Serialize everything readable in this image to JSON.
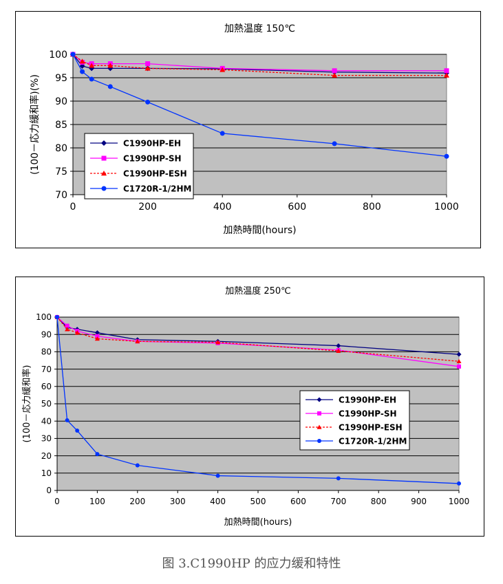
{
  "caption": "图 3.C1990HP 的应力缓和特性",
  "chart_data": [
    {
      "type": "line",
      "title": "加熱温度 150℃",
      "xlabel": "加熱時間(hours)",
      "ylabel": "(100－応力緩和率)(%)",
      "xlim": [
        0,
        1000
      ],
      "ylim": [
        70,
        100
      ],
      "xticks": [
        0,
        200,
        400,
        600,
        800,
        1000
      ],
      "yticks": [
        70,
        75,
        80,
        85,
        90,
        95,
        100
      ],
      "grid": true,
      "legend_position": "bottom-left",
      "series": [
        {
          "name": "C1990HP-EH",
          "color": "#000080",
          "dash": "solid",
          "marker": "diamond",
          "x": [
            0,
            25,
            50,
            100,
            200,
            400,
            700,
            1000
          ],
          "y": [
            100,
            97.5,
            97,
            97,
            97,
            96.9,
            96.2,
            96
          ]
        },
        {
          "name": "C1990HP-SH",
          "color": "#ff00ff",
          "dash": "solid",
          "marker": "square",
          "x": [
            0,
            25,
            50,
            100,
            200,
            400,
            700,
            1000
          ],
          "y": [
            100,
            98.3,
            98,
            98,
            98,
            97,
            96.5,
            96.5
          ]
        },
        {
          "name": "C1990HP-ESH",
          "color": "#ff0000",
          "dash": "dotted",
          "marker": "triangle",
          "x": [
            0,
            25,
            50,
            100,
            200,
            400,
            700,
            1000
          ],
          "y": [
            100,
            98.5,
            97.6,
            97.6,
            97,
            96.7,
            95.5,
            95.5
          ]
        },
        {
          "name": "C1720R-1/2HM",
          "color": "#0033ff",
          "dash": "solid",
          "marker": "circle",
          "x": [
            0,
            25,
            50,
            100,
            200,
            400,
            700,
            1000
          ],
          "y": [
            100,
            96.3,
            94.7,
            93.1,
            89.8,
            83.1,
            80.9,
            78.2
          ]
        }
      ]
    },
    {
      "type": "line",
      "title": "加熱温度 250℃",
      "xlabel": "加熱時間(hours)",
      "ylabel": "(100－応力緩和率)",
      "xlim": [
        0,
        1000
      ],
      "ylim": [
        0,
        100
      ],
      "xticks": [
        0,
        100,
        200,
        300,
        400,
        500,
        600,
        700,
        800,
        900,
        1000
      ],
      "yticks": [
        0,
        10,
        20,
        30,
        40,
        50,
        60,
        70,
        80,
        90,
        100
      ],
      "grid": true,
      "legend_position": "center-right",
      "series": [
        {
          "name": "C1990HP-EH",
          "color": "#000080",
          "dash": "solid",
          "marker": "diamond",
          "x": [
            0,
            25,
            50,
            100,
            200,
            400,
            700,
            1000
          ],
          "y": [
            100,
            94,
            93,
            91,
            87,
            86,
            83.5,
            78.5
          ]
        },
        {
          "name": "C1990HP-SH",
          "color": "#ff00ff",
          "dash": "solid",
          "marker": "square",
          "x": [
            0,
            25,
            50,
            100,
            200,
            400,
            700,
            1000
          ],
          "y": [
            100,
            95,
            92,
            89,
            86,
            85,
            81,
            71.5
          ]
        },
        {
          "name": "C1990HP-ESH",
          "color": "#ff0000",
          "dash": "dotted",
          "marker": "triangle",
          "x": [
            0,
            25,
            50,
            100,
            200,
            400,
            700,
            1000
          ],
          "y": [
            100,
            93,
            91,
            87.5,
            86,
            85.5,
            80.5,
            74.5
          ]
        },
        {
          "name": "C1720R-1/2HM",
          "color": "#0033ff",
          "dash": "solid",
          "marker": "circle",
          "x": [
            0,
            25,
            50,
            100,
            200,
            400,
            700,
            1000
          ],
          "y": [
            100,
            40.5,
            34.5,
            21,
            14.5,
            8.5,
            7,
            4
          ]
        }
      ]
    }
  ]
}
